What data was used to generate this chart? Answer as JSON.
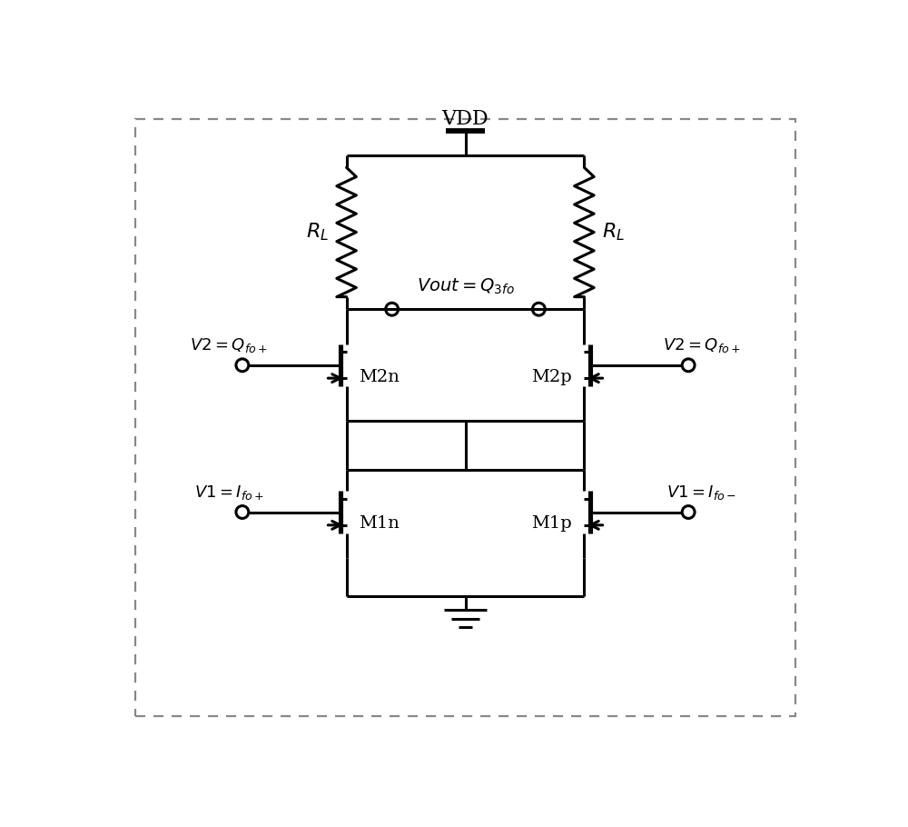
{
  "line_color": "#000000",
  "vdd_label": "VDD",
  "vout_label": "Vout=Q_{3fo}",
  "m2n_label": "M2n",
  "m2p_label": "M2p",
  "m1n_label": "M1n",
  "m1p_label": "M1p",
  "v2_left_label": "V2=Q_{fo+}",
  "v2_right_label": "V2=Q_{fo+}",
  "v1_left_label": "V1=I_{fo+}",
  "v1_right_label": "V1=I_{fo-}",
  "lw": 2.2,
  "font_size": 14
}
